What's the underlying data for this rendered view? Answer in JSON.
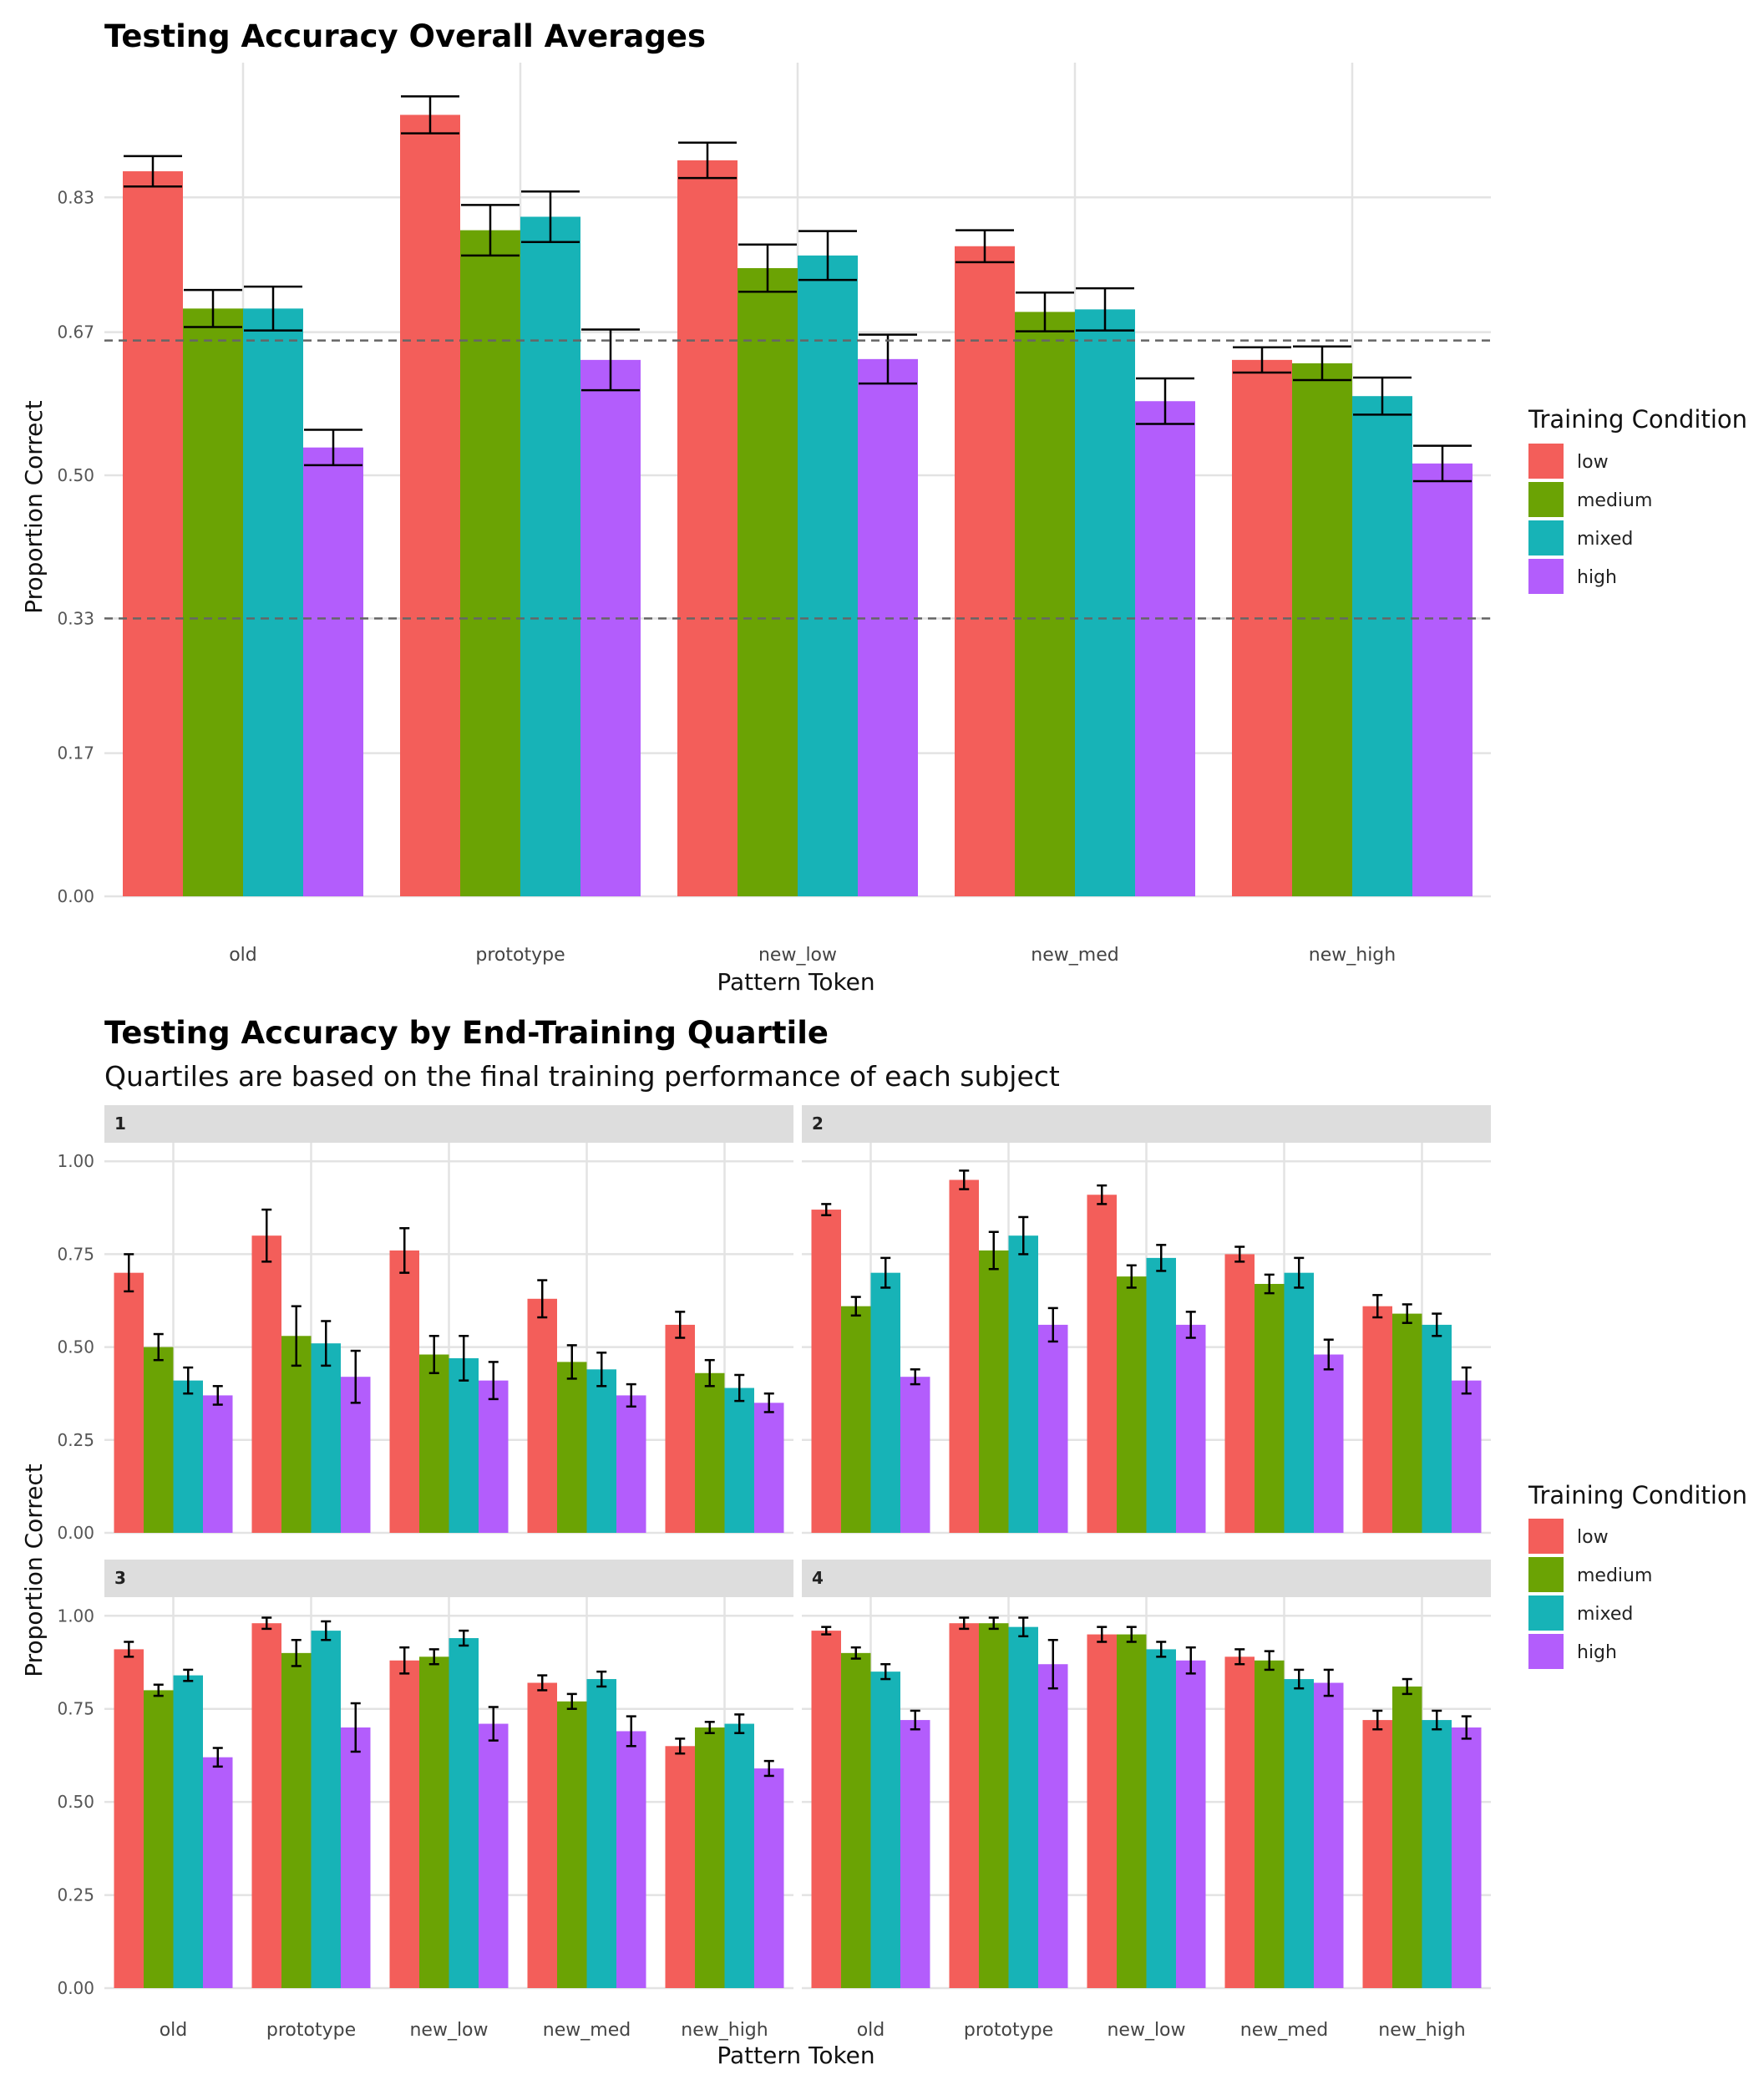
{
  "colors": {
    "low": "#F35E5A",
    "medium": "#6BA304",
    "mixed": "#17B3B7",
    "high": "#B35DFC"
  },
  "chart_data": [
    {
      "type": "bar",
      "title": "Testing Accuracy Overall Averages",
      "xlabel": "Pattern Token",
      "ylabel": "Proportion Correct",
      "categories": [
        "old",
        "prototype",
        "new_low",
        "new_med",
        "new_high"
      ],
      "y_ticks": [
        0.0,
        0.17,
        0.33,
        0.5,
        0.67,
        0.83
      ],
      "y_tick_labels": [
        "0.00",
        "0.17",
        "0.33",
        "0.50",
        "0.67",
        "0.83"
      ],
      "ylim": [
        0,
        0.99
      ],
      "reference_lines": [
        0.33,
        0.66
      ],
      "legend": {
        "title": "Training Condition",
        "position": "right"
      },
      "series": [
        {
          "name": "low",
          "values": [
            0.861,
            0.928,
            0.874,
            0.772,
            0.637
          ],
          "errors": [
            0.018,
            0.022,
            0.021,
            0.019,
            0.015
          ]
        },
        {
          "name": "medium",
          "values": [
            0.698,
            0.791,
            0.746,
            0.694,
            0.633
          ],
          "errors": [
            0.022,
            0.03,
            0.028,
            0.023,
            0.02
          ]
        },
        {
          "name": "mixed",
          "values": [
            0.698,
            0.807,
            0.761,
            0.697,
            0.594
          ],
          "errors": [
            0.026,
            0.03,
            0.029,
            0.025,
            0.022
          ]
        },
        {
          "name": "high",
          "values": [
            0.533,
            0.637,
            0.638,
            0.588,
            0.514
          ],
          "errors": [
            0.021,
            0.036,
            0.029,
            0.027,
            0.021
          ]
        }
      ]
    },
    {
      "type": "bar",
      "title": "Testing Accuracy by End-Training Quartile",
      "subtitle": "Quartiles are based on the final training performance of each subject",
      "xlabel": "Pattern Token",
      "ylabel": "Proportion Correct",
      "categories": [
        "old",
        "prototype",
        "new_low",
        "new_med",
        "new_high"
      ],
      "y_ticks": [
        0.0,
        0.25,
        0.5,
        0.75,
        1.0
      ],
      "y_tick_labels": [
        "0.00",
        "0.25",
        "0.50",
        "0.75",
        "1.00"
      ],
      "ylim": [
        0,
        1.05
      ],
      "legend": {
        "title": "Training Condition",
        "position": "right"
      },
      "series_names": [
        "low",
        "medium",
        "mixed",
        "high"
      ],
      "facets": [
        {
          "label": "1",
          "values": [
            [
              0.7,
              0.8,
              0.76,
              0.63,
              0.56
            ],
            [
              0.5,
              0.53,
              0.48,
              0.46,
              0.43
            ],
            [
              0.41,
              0.51,
              0.47,
              0.44,
              0.39
            ],
            [
              0.37,
              0.42,
              0.41,
              0.37,
              0.35
            ]
          ],
          "errors": [
            [
              0.05,
              0.07,
              0.06,
              0.05,
              0.035
            ],
            [
              0.035,
              0.08,
              0.05,
              0.045,
              0.035
            ],
            [
              0.035,
              0.06,
              0.06,
              0.045,
              0.035
            ],
            [
              0.025,
              0.07,
              0.05,
              0.03,
              0.025
            ]
          ]
        },
        {
          "label": "2",
          "values": [
            [
              0.87,
              0.95,
              0.91,
              0.75,
              0.61
            ],
            [
              0.61,
              0.76,
              0.69,
              0.67,
              0.59
            ],
            [
              0.7,
              0.8,
              0.74,
              0.7,
              0.56
            ],
            [
              0.42,
              0.56,
              0.56,
              0.48,
              0.41
            ]
          ],
          "errors": [
            [
              0.015,
              0.025,
              0.025,
              0.02,
              0.03
            ],
            [
              0.025,
              0.05,
              0.03,
              0.025,
              0.025
            ],
            [
              0.04,
              0.05,
              0.035,
              0.04,
              0.03
            ],
            [
              0.02,
              0.045,
              0.035,
              0.04,
              0.035
            ]
          ]
        },
        {
          "label": "3",
          "values": [
            [
              0.91,
              0.98,
              0.88,
              0.82,
              0.65
            ],
            [
              0.8,
              0.9,
              0.89,
              0.77,
              0.7
            ],
            [
              0.84,
              0.96,
              0.94,
              0.83,
              0.71
            ],
            [
              0.62,
              0.7,
              0.71,
              0.69,
              0.59
            ]
          ],
          "errors": [
            [
              0.02,
              0.015,
              0.035,
              0.02,
              0.02
            ],
            [
              0.015,
              0.035,
              0.02,
              0.02,
              0.015
            ],
            [
              0.015,
              0.025,
              0.02,
              0.02,
              0.025
            ],
            [
              0.025,
              0.065,
              0.045,
              0.04,
              0.02
            ]
          ]
        },
        {
          "label": "4",
          "values": [
            [
              0.96,
              0.98,
              0.95,
              0.89,
              0.72
            ],
            [
              0.9,
              0.98,
              0.95,
              0.88,
              0.81
            ],
            [
              0.85,
              0.97,
              0.91,
              0.83,
              0.72
            ],
            [
              0.72,
              0.87,
              0.88,
              0.82,
              0.7
            ]
          ],
          "errors": [
            [
              0.01,
              0.015,
              0.02,
              0.02,
              0.025
            ],
            [
              0.015,
              0.015,
              0.02,
              0.025,
              0.02
            ],
            [
              0.02,
              0.025,
              0.02,
              0.025,
              0.025
            ],
            [
              0.025,
              0.065,
              0.035,
              0.035,
              0.03
            ]
          ]
        }
      ]
    }
  ]
}
